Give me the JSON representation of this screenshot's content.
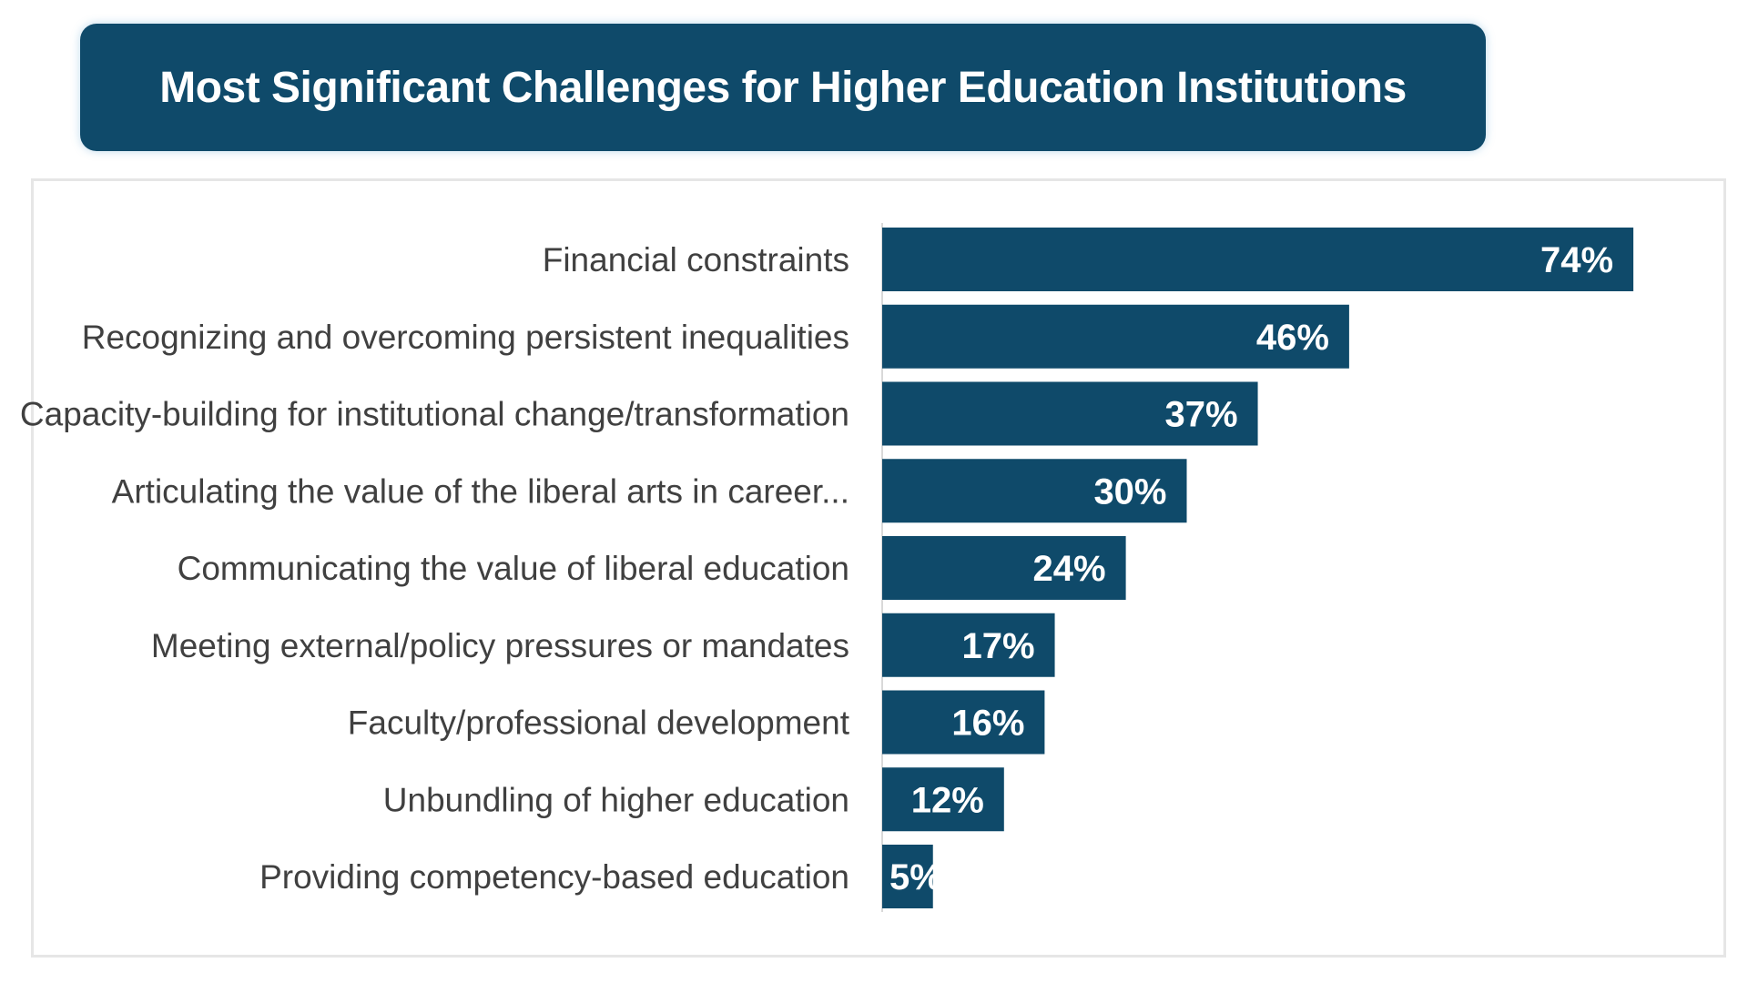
{
  "chart_data": {
    "type": "bar",
    "orientation": "horizontal",
    "title": "Most Significant Challenges for Higher Education Institutions",
    "categories": [
      "Financial constraints",
      "Recognizing and overcoming persistent inequalities",
      "Capacity-building for institutional change/transformation",
      "Articulating the value of the liberal arts in career...",
      "Communicating the value of liberal education",
      "Meeting external/policy pressures or mandates",
      "Faculty/professional development",
      "Unbundling of higher education",
      "Providing competency-based education"
    ],
    "values": [
      74,
      46,
      37,
      30,
      24,
      17,
      16,
      12,
      5
    ],
    "value_labels": [
      "74%",
      "46%",
      "37%",
      "30%",
      "24%",
      "17%",
      "16%",
      "12%",
      "5%"
    ],
    "unit": "%",
    "xlim": [
      0,
      100
    ],
    "grid": false,
    "legend": "none",
    "bar_color": "#0f4a6a",
    "banner_color": "#0f4a6a"
  }
}
